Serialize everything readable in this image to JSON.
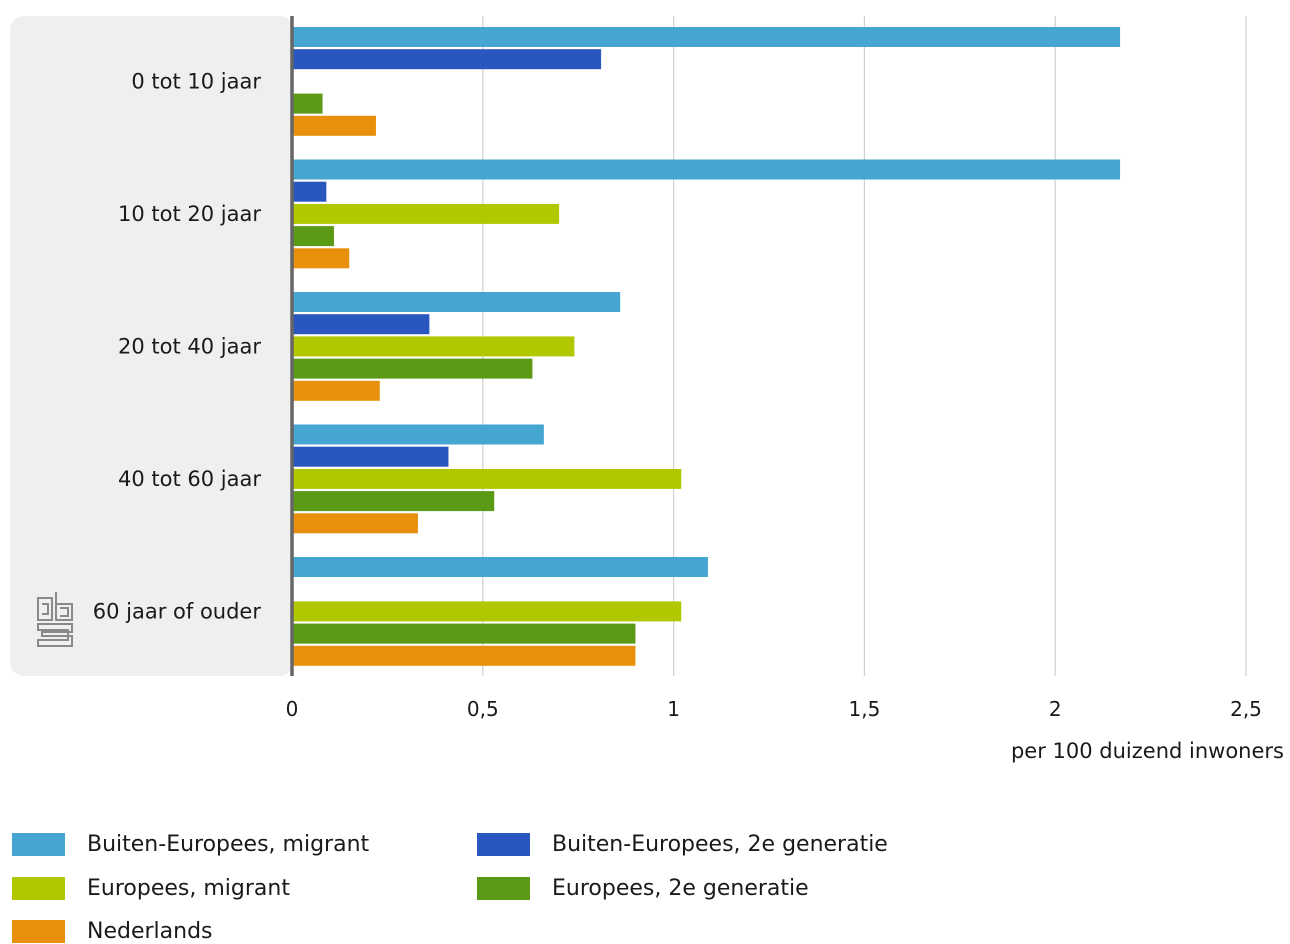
{
  "chart_data": {
    "type": "bar",
    "orientation": "horizontal",
    "categories": [
      "0 tot 10 jaar",
      "10 tot 20 jaar",
      "20 tot 40 jaar",
      "40 tot 60 jaar",
      "60 jaar of ouder"
    ],
    "series": [
      {
        "name": "Buiten-Europees, migrant",
        "color": "#45a6d1",
        "values": [
          2.17,
          2.17,
          0.86,
          0.66,
          1.09
        ]
      },
      {
        "name": "Buiten-Europees, 2e generatie",
        "color": "#2a56bf",
        "values": [
          0.81,
          0.09,
          0.36,
          0.41,
          null
        ]
      },
      {
        "name": "Europees, migrant",
        "color": "#b1c800",
        "values": [
          null,
          0.7,
          0.74,
          1.02,
          1.02
        ]
      },
      {
        "name": "Europees, 2e generatie",
        "color": "#5a9a14",
        "values": [
          0.08,
          0.11,
          0.63,
          0.53,
          0.9
        ]
      },
      {
        "name": "Nederlands",
        "color": "#e8900b",
        "values": [
          0.22,
          0.15,
          0.23,
          0.33,
          0.9
        ]
      }
    ],
    "xlim": [
      0,
      2.5
    ],
    "xticks": [
      {
        "value": 0,
        "label": "0"
      },
      {
        "value": 0.5,
        "label": "0,5"
      },
      {
        "value": 1,
        "label": "1"
      },
      {
        "value": 1.5,
        "label": "1,5"
      },
      {
        "value": 2,
        "label": "2"
      },
      {
        "value": 2.5,
        "label": "2,5"
      }
    ],
    "xlabel": "per 100 duizend inwoners",
    "grid": true,
    "legend_position": "bottom"
  }
}
